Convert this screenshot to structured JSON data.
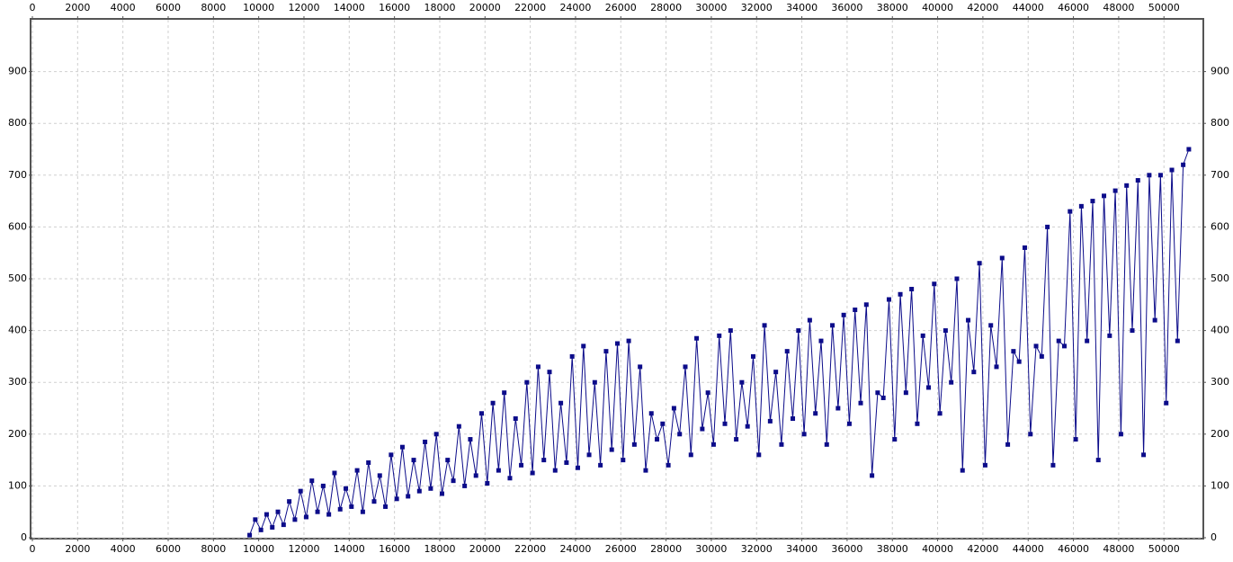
{
  "chart_data": {
    "type": "line",
    "grid": true,
    "xlim": [
      0,
      51700
    ],
    "ylim": [
      0,
      1000
    ],
    "xticks": [
      0,
      2000,
      4000,
      6000,
      8000,
      10000,
      12000,
      14000,
      16000,
      18000,
      20000,
      22000,
      24000,
      26000,
      28000,
      30000,
      32000,
      34000,
      36000,
      38000,
      40000,
      42000,
      44000,
      46000,
      48000,
      50000
    ],
    "yticks": [
      0,
      100,
      200,
      300,
      400,
      500,
      600,
      700,
      800,
      900
    ],
    "series": [
      {
        "color": "#0c0c8a",
        "x": [
          9600,
          9850,
          10100,
          10350,
          10600,
          10850,
          11100,
          11350,
          11600,
          11850,
          12100,
          12350,
          12600,
          12850,
          13100,
          13350,
          13600,
          13850,
          14100,
          14350,
          14600,
          14850,
          15100,
          15350,
          15600,
          15850,
          16100,
          16350,
          16600,
          16850,
          17100,
          17350,
          17600,
          17850,
          18100,
          18350,
          18600,
          18850,
          19100,
          19350,
          19600,
          19850,
          20100,
          20350,
          20600,
          20850,
          21100,
          21350,
          21600,
          21850,
          22100,
          22350,
          22600,
          22850,
          23100,
          23350,
          23600,
          23850,
          24100,
          24350,
          24600,
          24850,
          25100,
          25350,
          25600,
          25850,
          26100,
          26350,
          26600,
          26850,
          27100,
          27350,
          27600,
          27850,
          28100,
          28350,
          28600,
          28850,
          29100,
          29350,
          29600,
          29850,
          30100,
          30350,
          30600,
          30850,
          31100,
          31350,
          31600,
          31850,
          32100,
          32350,
          32600,
          32850,
          33100,
          33350,
          33600,
          33850,
          34100,
          34350,
          34600,
          34850,
          35100,
          35350,
          35600,
          35850,
          36100,
          36350,
          36600,
          36850,
          37100,
          37350,
          37600,
          37850,
          38100,
          38350,
          38600,
          38850,
          39100,
          39350,
          39600,
          39850,
          40100,
          40350,
          40600,
          40850,
          41100,
          41350,
          41600,
          41850,
          42100,
          42350,
          42600,
          42850,
          43100,
          43350,
          43600,
          43850,
          44100,
          44350,
          44600,
          44850,
          45100,
          45350,
          45600,
          45850,
          46100,
          46350,
          46600,
          46850,
          47100,
          47350,
          47600,
          47850,
          48100,
          48350,
          48600,
          48850,
          49100,
          49350,
          49600,
          49850,
          50100,
          50350,
          50600,
          50850,
          51100
        ],
        "values": [
          5,
          35,
          15,
          45,
          20,
          50,
          25,
          70,
          35,
          90,
          40,
          110,
          50,
          100,
          45,
          125,
          55,
          95,
          60,
          130,
          50,
          145,
          70,
          120,
          60,
          160,
          75,
          175,
          80,
          150,
          90,
          185,
          95,
          200,
          85,
          150,
          110,
          215,
          100,
          190,
          120,
          240,
          105,
          260,
          130,
          280,
          115,
          230,
          140,
          300,
          125,
          330,
          150,
          320,
          130,
          260,
          145,
          350,
          135,
          370,
          160,
          300,
          140,
          360,
          170,
          375,
          150,
          380,
          180,
          330,
          130,
          240,
          190,
          220,
          140,
          250,
          200,
          330,
          160,
          385,
          210,
          280,
          180,
          390,
          220,
          400,
          190,
          300,
          215,
          350,
          160,
          410,
          225,
          320,
          180,
          360,
          230,
          400,
          200,
          420,
          240,
          380,
          180,
          410,
          250,
          430,
          220,
          440,
          260,
          450,
          120,
          280,
          270,
          460,
          190,
          470,
          280,
          480,
          220,
          390,
          290,
          490,
          240,
          400,
          300,
          500,
          130,
          420,
          320,
          530,
          140,
          410,
          330,
          540,
          180,
          360,
          340,
          560,
          200,
          370,
          350,
          600,
          140,
          380,
          370,
          630,
          190,
          640,
          380,
          650,
          150,
          660,
          390,
          670,
          200,
          680,
          400,
          690,
          160,
          700,
          420,
          700,
          260,
          710,
          380,
          720,
          750
        ]
      }
    ]
  }
}
